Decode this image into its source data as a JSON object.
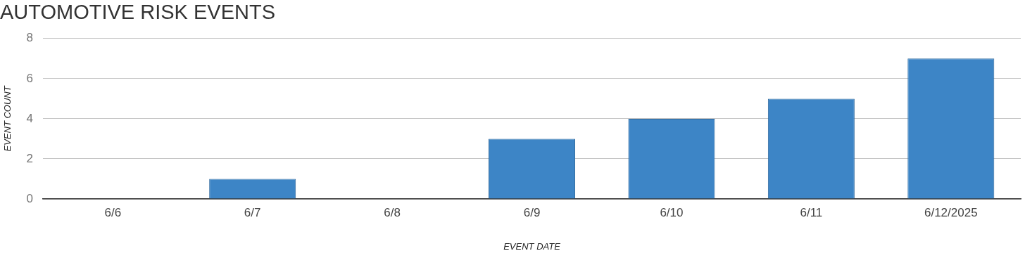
{
  "chart_data": {
    "type": "bar",
    "title": "AUTOMOTIVE RISK EVENTS",
    "xlabel": "EVENT DATE",
    "ylabel": "EVENT COUNT",
    "categories": [
      "6/6",
      "6/7",
      "6/8",
      "6/9",
      "6/10",
      "6/11",
      "6/12/2025"
    ],
    "values": [
      0,
      1,
      0,
      3,
      4,
      5,
      7
    ],
    "color": "#3d85c6",
    "ylim": [
      0,
      8
    ],
    "yticks": [
      0,
      2,
      4,
      6,
      8
    ],
    "grid": "y",
    "legend": false
  }
}
